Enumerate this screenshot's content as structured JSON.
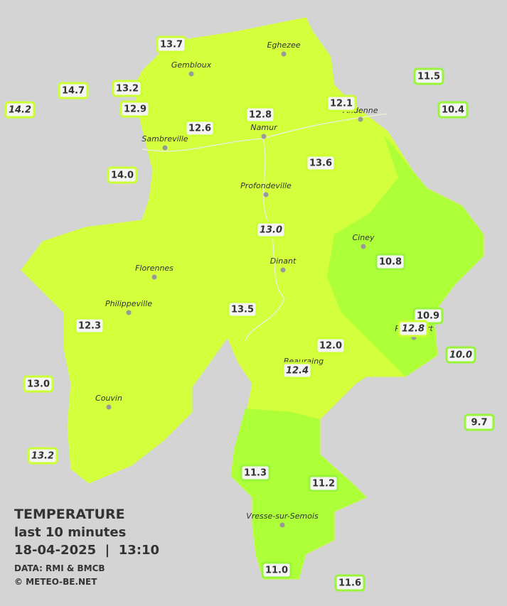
{
  "title": "TEMPERATURE",
  "subtitle": "last 10 minutes",
  "datetime": "18-04-2025  |  13:10",
  "credits": [
    "DATA: RMI & BMCB",
    "© METEO-BE.NET"
  ],
  "places": [
    "Eghezee",
    "Gembloux",
    "Andenne",
    "Namur",
    "Sambreville",
    "Profondeville",
    "Ciney",
    "Florennes",
    "Dinant",
    "Philippeville",
    "Rochefort",
    "Beauraing",
    "Couvin",
    "Vresse-sur-Semois"
  ],
  "stations": [
    "13.7",
    "13.2",
    "14.7",
    "14.2",
    "12.9",
    "12.6",
    "12.8",
    "12.1",
    "11.5",
    "10.4",
    "14.0",
    "13.6",
    "13.0",
    "10.8",
    "13.5",
    "12.3",
    "10.9",
    "12.8",
    "12.0",
    "10.0",
    "12.4",
    "13.0",
    "9.7",
    "13.2",
    "11.3",
    "11.2",
    "11.0",
    "11.6"
  ]
}
